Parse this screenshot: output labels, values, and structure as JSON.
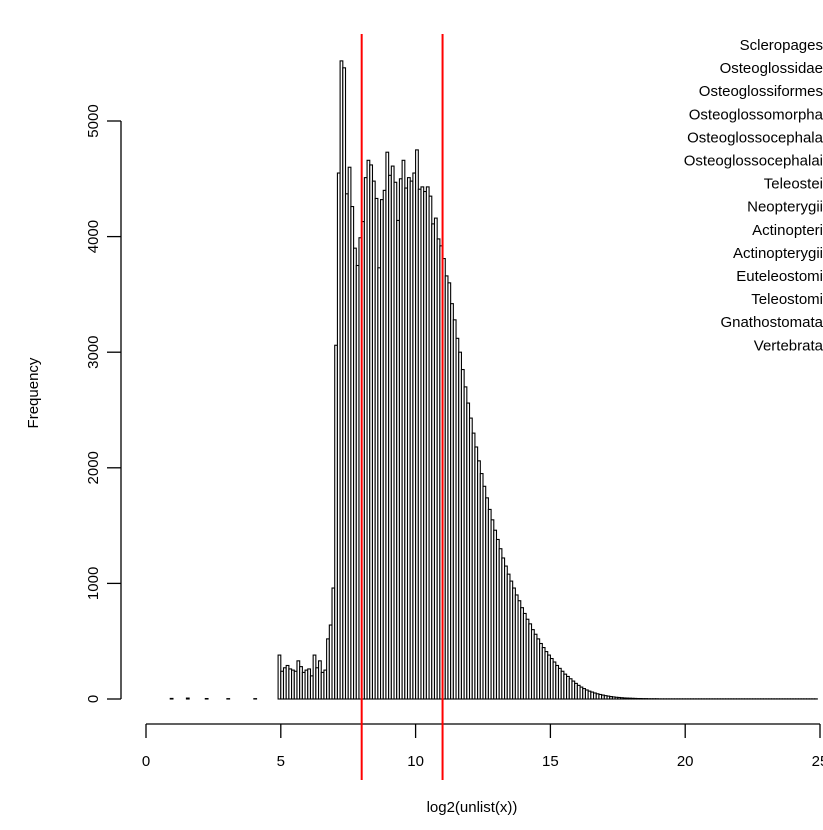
{
  "chart_data": {
    "type": "bar",
    "title": "",
    "xlabel": "log2(unlist(x))",
    "ylabel": "Frequency",
    "xlim": [
      0,
      25
    ],
    "ylim": [
      0,
      5000
    ],
    "xticks": [
      "0",
      "5",
      "10",
      "15",
      "20",
      "25"
    ],
    "yticks": [
      "0",
      "1000",
      "2000",
      "3000",
      "4000",
      "5000"
    ],
    "bin_width": 0.1,
    "vlines": [
      8,
      11
    ],
    "vline_color": "#ff0000",
    "bar_fill": "#ffffff",
    "bar_stroke": "#000000",
    "legend": [
      "Scleropages",
      "Osteoglossidae",
      "Osteoglossiformes",
      "Osteoglossomorpha",
      "Osteoglossocephala",
      "Osteoglossocephalai",
      "Teleostei",
      "Neopterygii",
      "Actinopteri",
      "Actinopterygii",
      "Euteleostomi",
      "Teleostomi",
      "Gnathostomata",
      "Vertebrata"
    ],
    "legend_placement": "top-right",
    "sparse_bins": [
      {
        "x": 0.9,
        "y": 5
      },
      {
        "x": 1.5,
        "y": 8
      },
      {
        "x": 2.2,
        "y": 4
      },
      {
        "x": 3.0,
        "y": 3
      },
      {
        "x": 4.0,
        "y": 3
      }
    ],
    "histogram": {
      "start": 4.9,
      "counts": [
        380,
        240,
        270,
        290,
        260,
        250,
        240,
        330,
        280,
        230,
        250,
        260,
        200,
        380,
        270,
        330,
        230,
        250,
        520,
        640,
        960,
        3060,
        4550,
        5520,
        5460,
        4370,
        4600,
        4260,
        3900,
        3750,
        3990,
        4130,
        4510,
        4660,
        4620,
        4480,
        4330,
        3730,
        4320,
        4400,
        4730,
        4530,
        4610,
        4470,
        4140,
        4500,
        4660,
        4420,
        4510,
        4480,
        4550,
        4750,
        4410,
        4430,
        4390,
        4430,
        4350,
        4110,
        4160,
        3980,
        3920,
        3810,
        3660,
        3600,
        3420,
        3280,
        3120,
        3000,
        2850,
        2700,
        2560,
        2430,
        2300,
        2180,
        2060,
        1950,
        1840,
        1740,
        1640,
        1550,
        1460,
        1380,
        1300,
        1220,
        1150,
        1080,
        1020,
        960,
        900,
        850,
        790,
        740,
        690,
        650,
        600,
        560,
        520,
        480,
        445,
        410,
        380,
        350,
        320,
        290,
        265,
        240,
        215,
        195,
        175,
        155,
        135,
        118,
        103,
        90,
        78,
        68,
        60,
        52,
        45,
        39,
        34,
        29,
        25,
        21,
        18,
        15,
        13,
        11,
        9,
        8,
        7,
        6,
        5,
        4,
        4,
        3,
        3,
        2,
        2,
        2,
        2,
        1,
        1,
        1,
        1,
        1,
        1,
        1,
        1,
        1,
        1,
        1,
        1,
        1,
        1,
        1,
        1,
        1,
        1,
        1,
        1,
        1,
        1,
        1,
        1,
        1,
        1,
        1,
        1,
        1,
        1,
        1,
        1,
        1,
        1,
        1,
        1,
        1,
        1,
        1,
        1,
        1,
        1,
        1,
        1,
        1,
        1,
        1,
        1,
        1,
        1,
        1,
        1,
        1,
        1,
        1,
        1,
        1,
        1,
        1
      ]
    }
  }
}
